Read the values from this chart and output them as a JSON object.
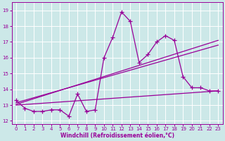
{
  "xlabel": "Windchill (Refroidissement éolien,°C)",
  "bg_color": "#cce8e8",
  "grid_color": "#ffffff",
  "line_color": "#990099",
  "xlim": [
    -0.5,
    23.5
  ],
  "ylim": [
    11.8,
    19.5
  ],
  "yticks": [
    12,
    13,
    14,
    15,
    16,
    17,
    18,
    19
  ],
  "xticks": [
    0,
    1,
    2,
    3,
    4,
    5,
    6,
    7,
    8,
    9,
    10,
    11,
    12,
    13,
    14,
    15,
    16,
    17,
    18,
    19,
    20,
    21,
    22,
    23
  ],
  "series1_x": [
    0,
    1,
    2,
    3,
    4,
    5,
    6,
    7,
    8,
    9,
    10,
    11,
    12,
    13,
    14,
    15,
    16,
    17,
    18,
    19,
    20,
    21,
    22,
    23
  ],
  "series1_y": [
    13.3,
    12.8,
    12.6,
    12.6,
    12.7,
    12.7,
    12.3,
    13.7,
    12.6,
    12.7,
    16.0,
    17.3,
    18.9,
    18.3,
    15.7,
    16.2,
    17.0,
    17.4,
    17.1,
    14.8,
    14.1,
    14.1,
    13.9,
    13.9
  ],
  "trend1_x": [
    0,
    23
  ],
  "trend1_y": [
    13.05,
    17.1
  ],
  "trend2_x": [
    0,
    23
  ],
  "trend2_y": [
    13.15,
    16.8
  ],
  "trend3_x": [
    0,
    23
  ],
  "trend3_y": [
    13.0,
    13.9
  ],
  "marker_size": 4.5,
  "linewidth": 0.9,
  "tick_fontsize": 5.0,
  "xlabel_fontsize": 5.5
}
